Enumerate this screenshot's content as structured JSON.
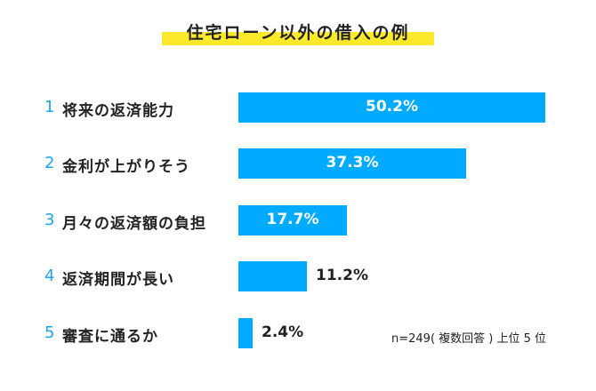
{
  "chart_data": {
    "type": "bar",
    "orientation": "horizontal",
    "title": "住宅ローン以外の借入の例",
    "ranks": [
      "1",
      "2",
      "3",
      "4",
      "5"
    ],
    "categories": [
      "将来の返済能力",
      "金利が上がりそう",
      "月々の返済額の負担",
      "返済期間が長い",
      "審査に通るか"
    ],
    "values": [
      50.2,
      37.3,
      17.7,
      11.2,
      2.4
    ],
    "value_labels": [
      "50.2%",
      "37.3%",
      "17.7%",
      "11.2%",
      "2.4%"
    ],
    "xlim": [
      0,
      50.2
    ],
    "note": "n=249( 複数回答 ) 上位 5 位",
    "colors": {
      "bar": "#00aaff",
      "rank": "#1aa5ee",
      "highlight": "#fde92c"
    }
  }
}
